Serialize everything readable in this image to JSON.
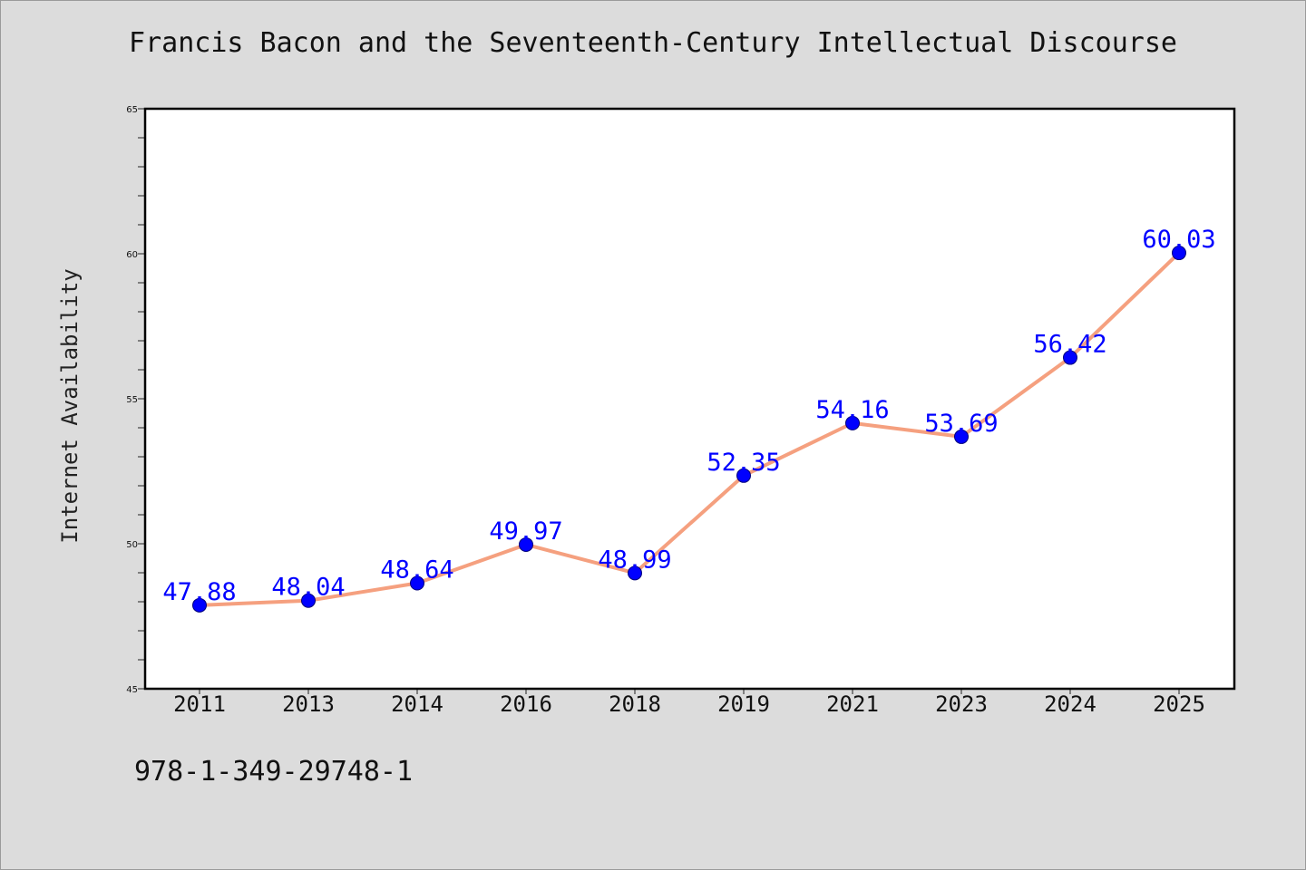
{
  "chart_data": {
    "type": "line",
    "title": "Francis Bacon and the Seventeenth-Century Intellectual Discourse",
    "xlabel": "",
    "ylabel": "Internet Availability",
    "categories": [
      "2011",
      "2013",
      "2014",
      "2016",
      "2018",
      "2019",
      "2021",
      "2023",
      "2024",
      "2025"
    ],
    "series": [
      {
        "values": [
          47.88,
          48.04,
          48.64,
          49.97,
          48.99,
          52.35,
          54.16,
          53.69,
          56.42,
          60.03
        ],
        "labels": [
          "47.88",
          "48.04",
          "48.64",
          "49.97",
          "48.99",
          "52.35",
          "54.16",
          "53.69",
          "56.42",
          "60.03"
        ]
      }
    ],
    "ylim": [
      45,
      65
    ],
    "yticks": [
      45,
      50,
      55,
      60,
      65
    ],
    "grid": false,
    "colors": {
      "line": "#f5a07f",
      "marker": "#0000ff",
      "label": "#0000ff",
      "background": "#dcdcdc",
      "plot_background": "#ffffff"
    }
  },
  "footer": {
    "isbn": "978-1-349-29748-1"
  }
}
